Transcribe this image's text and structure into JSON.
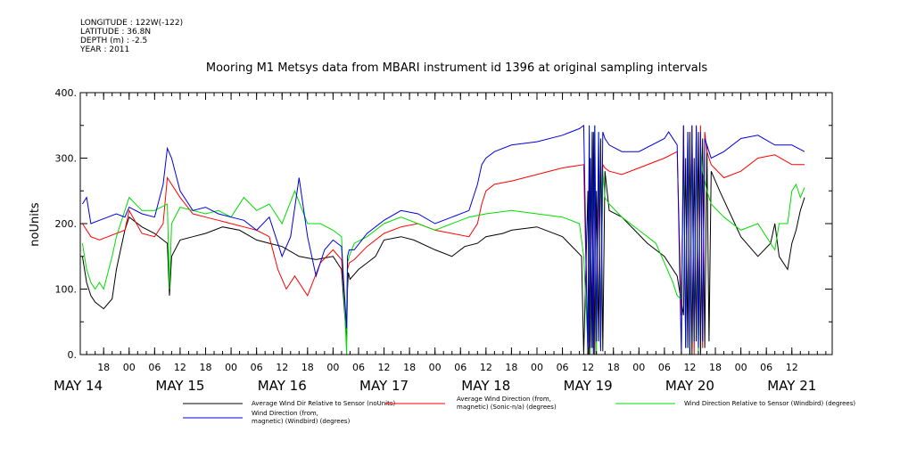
{
  "meta": {
    "longitude": "LONGITUDE : 122W(-122)",
    "latitude": "LATITUDE : 36.8N",
    "depth": "DEPTH (m) : -2.5",
    "year": "YEAR : 2011"
  },
  "chart_data": {
    "type": "line",
    "title": "Mooring M1 Metsys data from MBARI instrument id 1396 at original sampling intervals",
    "ylabel": "noUnits",
    "xlabel": "",
    "ylim": [
      0,
      400
    ],
    "yticks": [
      0,
      100,
      200,
      300,
      400
    ],
    "yticklabels": [
      "0.",
      "100.",
      "200.",
      "300.",
      "400."
    ],
    "x_unit": "hours since 2011-05-14 00:00",
    "xlim": [
      12.5,
      189.5
    ],
    "hour_ticks": [
      {
        "t": 18,
        "label": "18"
      },
      {
        "t": 24,
        "label": "00"
      },
      {
        "t": 30,
        "label": "06"
      },
      {
        "t": 36,
        "label": "12"
      },
      {
        "t": 42,
        "label": "18"
      },
      {
        "t": 48,
        "label": "00"
      },
      {
        "t": 54,
        "label": "06"
      },
      {
        "t": 60,
        "label": "12"
      },
      {
        "t": 66,
        "label": "18"
      },
      {
        "t": 72,
        "label": "00"
      },
      {
        "t": 78,
        "label": "06"
      },
      {
        "t": 84,
        "label": "12"
      },
      {
        "t": 90,
        "label": "18"
      },
      {
        "t": 96,
        "label": "00"
      },
      {
        "t": 102,
        "label": "06"
      },
      {
        "t": 108,
        "label": "12"
      },
      {
        "t": 114,
        "label": "18"
      },
      {
        "t": 120,
        "label": "00"
      },
      {
        "t": 126,
        "label": "06"
      },
      {
        "t": 132,
        "label": "12"
      },
      {
        "t": 138,
        "label": "18"
      },
      {
        "t": 144,
        "label": "00"
      },
      {
        "t": 150,
        "label": "06"
      },
      {
        "t": 156,
        "label": "12"
      },
      {
        "t": 162,
        "label": "18"
      },
      {
        "t": 168,
        "label": "00"
      },
      {
        "t": 174,
        "label": "06"
      },
      {
        "t": 180,
        "label": "12"
      }
    ],
    "date_labels": [
      {
        "t": 12,
        "label": "MAY 14"
      },
      {
        "t": 36,
        "label": "MAY 15"
      },
      {
        "t": 60,
        "label": "MAY 16"
      },
      {
        "t": 84,
        "label": "MAY 17"
      },
      {
        "t": 108,
        "label": "MAY 18"
      },
      {
        "t": 132,
        "label": "MAY 19"
      },
      {
        "t": 156,
        "label": "MAY 20"
      },
      {
        "t": 180,
        "label": "MAY 21"
      }
    ],
    "legend_placement": "bottom",
    "series": [
      {
        "name": "Average Wind Dir Relative to Sensor (noUnits)",
        "color": "#000000",
        "x": [
          13,
          14,
          15,
          16,
          17,
          18,
          20,
          21,
          22,
          23,
          24,
          26,
          27,
          30,
          33,
          33.5,
          34,
          36,
          39,
          42,
          46,
          50,
          54,
          57,
          60,
          64,
          68,
          72,
          74,
          75.2,
          75.4,
          75.6,
          76,
          78,
          80,
          82,
          84,
          88,
          91,
          96,
          100,
          103,
          106,
          108,
          112,
          114,
          120,
          126,
          129,
          130.5,
          131,
          132,
          132.3,
          132.6,
          133,
          133.3,
          133.6,
          134,
          134.5,
          135,
          135.5,
          136,
          137,
          140,
          143,
          146,
          150,
          153,
          154,
          154.5,
          155,
          155.5,
          156,
          156.5,
          157,
          157.5,
          158,
          158.5,
          159,
          159.5,
          160,
          160.5,
          161,
          163,
          168,
          172,
          175,
          176,
          177,
          179,
          180,
          181,
          182,
          183
        ],
        "y": [
          150,
          110,
          90,
          80,
          75,
          70,
          85,
          130,
          160,
          190,
          210,
          200,
          195,
          185,
          170,
          90,
          150,
          175,
          180,
          185,
          195,
          190,
          175,
          170,
          165,
          150,
          145,
          150,
          130,
          20,
          100,
          125,
          115,
          130,
          140,
          150,
          175,
          180,
          175,
          160,
          150,
          165,
          170,
          180,
          185,
          190,
          195,
          180,
          160,
          150,
          0,
          250,
          0,
          300,
          10,
          340,
          0,
          250,
          20,
          330,
          5,
          280,
          220,
          210,
          190,
          170,
          150,
          120,
          80,
          60,
          300,
          10,
          340,
          0,
          300,
          20,
          340,
          0,
          330,
          10,
          320,
          20,
          280,
          250,
          180,
          150,
          170,
          200,
          150,
          130,
          170,
          190,
          220,
          240
        ]
      },
      {
        "name": "Average Wind Direction (from, magnetic) (Sonic-n/a) (degrees)",
        "color": "#ff0000",
        "x": [
          13,
          15,
          17,
          19,
          21,
          23,
          24,
          27,
          30,
          32,
          33,
          35,
          36,
          39,
          42,
          45,
          48,
          51,
          54,
          57,
          59,
          61,
          63,
          66,
          69,
          72,
          74,
          75.2,
          75.4,
          75.8,
          77,
          80,
          84,
          88,
          92,
          96,
          100,
          104,
          106,
          107,
          108,
          110,
          114,
          120,
          126,
          131,
          132,
          132.3,
          132.6,
          133,
          133.3,
          133.6,
          134,
          134.5,
          135,
          135.5,
          136,
          137,
          140,
          144,
          150,
          153,
          154,
          154.5,
          155,
          155.5,
          156,
          156.5,
          157,
          157.5,
          158,
          158.5,
          159,
          159.5,
          160,
          161,
          164,
          168,
          172,
          176,
          180,
          183
        ],
        "y": [
          200,
          180,
          175,
          180,
          185,
          190,
          220,
          185,
          180,
          200,
          270,
          250,
          240,
          215,
          210,
          205,
          200,
          195,
          190,
          180,
          130,
          100,
          120,
          90,
          140,
          160,
          145,
          40,
          130,
          140,
          145,
          165,
          185,
          195,
          200,
          190,
          185,
          180,
          200,
          230,
          250,
          260,
          265,
          275,
          285,
          290,
          0,
          300,
          10,
          280,
          0,
          300,
          20,
          280,
          10,
          290,
          285,
          280,
          275,
          285,
          300,
          310,
          60,
          350,
          10,
          340,
          20,
          350,
          0,
          345,
          30,
          350,
          10,
          340,
          310,
          290,
          270,
          280,
          300,
          305,
          290,
          290
        ]
      },
      {
        "name": "Wind Direction Relative to Sensor (Windbird) (degrees)",
        "color": "#00dd00",
        "x": [
          13,
          14,
          15,
          16,
          17,
          18,
          20,
          21,
          22,
          24,
          27,
          30,
          33,
          33.5,
          34,
          36,
          39,
          42,
          45,
          48,
          51,
          54,
          57,
          60,
          63,
          66,
          69,
          72,
          74,
          75.2,
          75.4,
          75.8,
          77,
          80,
          84,
          88,
          92,
          96,
          100,
          104,
          108,
          114,
          120,
          126,
          130,
          131,
          132,
          132.3,
          132.6,
          133,
          133.3,
          133.6,
          134,
          134.5,
          135,
          135.5,
          136,
          137,
          140,
          144,
          148,
          150,
          152,
          153,
          154,
          154.5,
          155,
          155.5,
          156,
          156.5,
          157,
          157.5,
          158,
          158.5,
          159,
          160,
          161,
          164,
          168,
          172,
          175,
          176,
          177,
          179,
          180,
          181,
          182,
          183
        ],
        "y": [
          170,
          130,
          110,
          100,
          110,
          100,
          150,
          180,
          200,
          240,
          220,
          220,
          230,
          100,
          200,
          225,
          220,
          215,
          220,
          210,
          240,
          220,
          230,
          200,
          250,
          200,
          200,
          190,
          180,
          0,
          140,
          150,
          170,
          180,
          200,
          210,
          200,
          190,
          200,
          210,
          215,
          220,
          215,
          210,
          200,
          150,
          10,
          340,
          0,
          330,
          20,
          350,
          0,
          340,
          10,
          280,
          240,
          230,
          210,
          190,
          170,
          140,
          110,
          90,
          85,
          300,
          10,
          340,
          0,
          330,
          20,
          350,
          0,
          320,
          280,
          250,
          230,
          210,
          190,
          200,
          170,
          160,
          200,
          200,
          250,
          260,
          240,
          255
        ]
      },
      {
        "name": "Wind Direction (from, magnetic) (Windbird) (degrees)",
        "color": "#0000dd",
        "x": [
          13,
          14,
          15,
          17,
          19,
          21,
          23,
          24,
          27,
          30,
          32,
          33,
          34,
          36,
          39,
          42,
          45,
          48,
          51,
          54,
          57,
          60,
          62,
          64,
          66,
          68,
          70,
          72,
          74,
          75.2,
          75.4,
          75.8,
          77,
          80,
          84,
          88,
          92,
          96,
          100,
          104,
          106,
          107,
          108,
          110,
          114,
          120,
          126,
          130,
          131,
          132,
          132.3,
          132.6,
          133,
          133.3,
          133.6,
          134,
          134.5,
          135,
          135.5,
          136,
          137,
          140,
          144,
          150,
          151,
          153,
          154,
          154.5,
          155,
          155.5,
          156,
          156.5,
          157,
          157.5,
          158,
          158.5,
          159,
          159.5,
          160,
          161,
          164,
          168,
          172,
          176,
          180,
          183
        ],
        "y": [
          230,
          240,
          200,
          205,
          210,
          215,
          210,
          225,
          215,
          210,
          260,
          315,
          300,
          250,
          220,
          225,
          215,
          210,
          205,
          190,
          210,
          150,
          180,
          270,
          180,
          120,
          160,
          175,
          165,
          40,
          150,
          160,
          160,
          185,
          205,
          220,
          215,
          200,
          210,
          220,
          260,
          290,
          300,
          310,
          320,
          325,
          335,
          345,
          350,
          0,
          350,
          10,
          340,
          0,
          350,
          20,
          340,
          5,
          340,
          330,
          320,
          310,
          310,
          330,
          340,
          320,
          0,
          350,
          10,
          340,
          0,
          350,
          20,
          350,
          10,
          340,
          20,
          330,
          320,
          300,
          310,
          330,
          335,
          320,
          320,
          310
        ]
      }
    ]
  }
}
